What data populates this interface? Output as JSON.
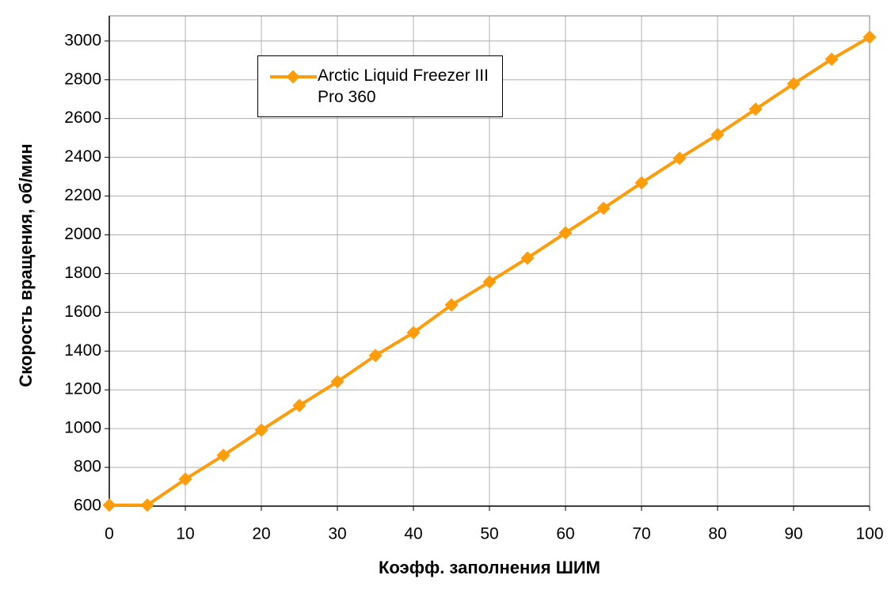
{
  "chart_data": {
    "type": "line",
    "x_label": "Коэфф. заполнения ШИМ",
    "y_label": "Скорость вращения, об/мин",
    "x": [
      0,
      5,
      10,
      15,
      20,
      25,
      30,
      35,
      40,
      45,
      50,
      55,
      60,
      65,
      70,
      75,
      80,
      85,
      90,
      95,
      100
    ],
    "series": [
      {
        "name": "Arctic Liquid Freezer III Pro 360",
        "color": "#ff9c0a",
        "values": [
          605,
          605,
          739,
          862,
          992,
          1119,
          1242,
          1377,
          1495,
          1638,
          1757,
          1880,
          2010,
          2137,
          2268,
          2395,
          2517,
          2648,
          2779,
          2906,
          3020
        ]
      }
    ],
    "xlim": [
      0,
      100
    ],
    "xticks": [
      0,
      10,
      20,
      30,
      40,
      50,
      60,
      70,
      80,
      90,
      100
    ],
    "ylim": [
      600,
      3130
    ],
    "yticks": [
      600,
      800,
      1000,
      1200,
      1400,
      1600,
      1800,
      2000,
      2200,
      2400,
      2600,
      2800,
      3000
    ],
    "grid": true
  }
}
